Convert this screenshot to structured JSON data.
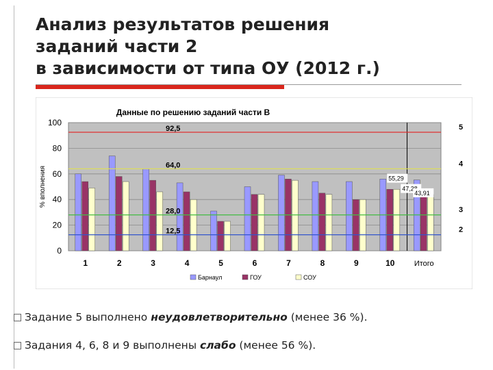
{
  "slide": {
    "title_lines": [
      "Анализ результатов решения",
      "заданий части 2",
      "в зависимости от типа ОУ (2012 г.)"
    ],
    "notes": [
      {
        "pre": "Задание 5 выполнено ",
        "emph": "неудовлетворительно",
        "post": " (менее 36 %)."
      },
      {
        "pre": "Задания 4, 6, 8 и 9 выполнены ",
        "emph": "слабо",
        "post": " (менее 56 %)."
      }
    ]
  },
  "chart_data": {
    "type": "bar",
    "title": "Данные по решению заданий части В",
    "ylabel": "% вполнения",
    "ylim": [
      0,
      100
    ],
    "yticks": [
      0,
      20,
      40,
      60,
      80,
      100
    ],
    "categories": [
      "1",
      "2",
      "3",
      "4",
      "5",
      "6",
      "7",
      "8",
      "9",
      "10",
      "Итого"
    ],
    "series": [
      {
        "name": "Барнаул",
        "color": "#9999ff",
        "values": [
          60,
          74,
          64,
          53,
          31,
          50,
          59,
          54,
          54,
          56,
          55.29
        ]
      },
      {
        "name": "ГОУ",
        "color": "#993366",
        "values": [
          54,
          58,
          55,
          46,
          23,
          44,
          56,
          45,
          40,
          48,
          47.28
        ]
      },
      {
        "name": "СОУ",
        "color": "#ffffcc",
        "values": [
          49,
          54,
          46,
          40,
          23,
          44,
          55,
          44,
          40,
          48,
          43.91
        ]
      }
    ],
    "bar_labels": [
      "55,29",
      "47,28",
      "43,91"
    ],
    "thresholds": [
      {
        "value": 92.5,
        "label": "92,5",
        "grade": "5",
        "color": "#e03030"
      },
      {
        "value": 64.0,
        "label": "64,0",
        "grade": "4",
        "color": "#e0e050"
      },
      {
        "value": 28.0,
        "label": "28,0",
        "grade": "3",
        "color": "#44bb44"
      },
      {
        "value": 12.5,
        "label": "12,5",
        "grade": "2",
        "color": "#3355cc"
      }
    ],
    "grid": true,
    "legend": "bottom"
  }
}
